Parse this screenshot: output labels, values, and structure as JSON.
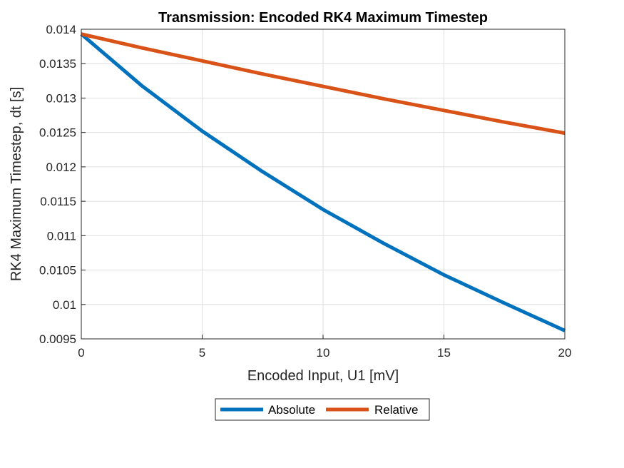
{
  "chart_data": {
    "type": "line",
    "title": "Transmission: Encoded RK4 Maximum Timestep",
    "xlabel": "Encoded Input, U1 [mV]",
    "ylabel": "RK4 Maximum Timestep, dt [s]",
    "xlim": [
      0,
      20
    ],
    "ylim": [
      0.0095,
      0.014
    ],
    "xticks": [
      0,
      5,
      10,
      15,
      20
    ],
    "xtick_labels": [
      "0",
      "5",
      "10",
      "15",
      "20"
    ],
    "yticks": [
      0.0095,
      0.01,
      0.0105,
      0.011,
      0.0115,
      0.012,
      0.0125,
      0.013,
      0.0135,
      0.014
    ],
    "ytick_labels": [
      "0.0095",
      "0.01",
      "0.0105",
      "0.011",
      "0.0115",
      "0.012",
      "0.0125",
      "0.013",
      "0.0135",
      "0.014"
    ],
    "grid": true,
    "legend_position": "bottom-outside",
    "x": [
      0,
      2.5,
      5,
      7.5,
      10,
      12.5,
      15,
      17.5,
      20
    ],
    "series": [
      {
        "name": "Absolute",
        "color": "#0072BD",
        "values": [
          0.01393,
          0.01318,
          0.01252,
          0.01193,
          0.01138,
          0.01089,
          0.01043,
          0.01002,
          0.00962
        ]
      },
      {
        "name": "Relative",
        "color": "#D95319",
        "values": [
          0.01393,
          0.01373,
          0.01354,
          0.01335,
          0.01317,
          0.01299,
          0.01282,
          0.01265,
          0.01249
        ]
      }
    ]
  }
}
